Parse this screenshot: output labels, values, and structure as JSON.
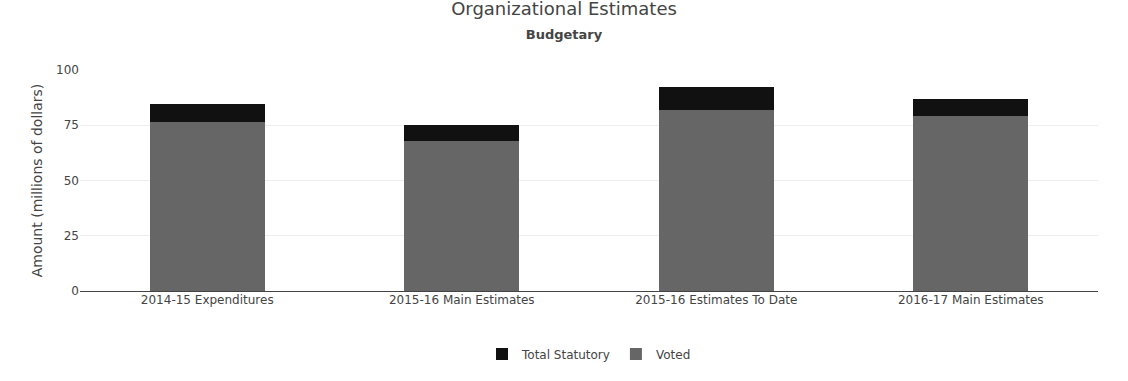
{
  "chart_data": {
    "type": "bar",
    "title": "Organizational Estimates",
    "subtitle": "Budgetary",
    "categories": [
      "2014-15 Expenditures",
      "2015-16 Main Estimates",
      "2015-16 Estimates To Date",
      "2016-17 Main Estimates"
    ],
    "series": [
      {
        "name": "Voted",
        "color": "#666666",
        "values": [
          76.5,
          68.0,
          82.0,
          79.0
        ]
      },
      {
        "name": "Total Statutory",
        "color": "#111111",
        "values": [
          8.0,
          7.0,
          10.5,
          8.0
        ]
      }
    ],
    "ylabel": "Amount (millions of dollars)",
    "ylim": [
      0,
      100
    ],
    "yticks": [
      0,
      25,
      50,
      75,
      100
    ],
    "grid": true,
    "stacked": true,
    "legend": "bottom"
  }
}
